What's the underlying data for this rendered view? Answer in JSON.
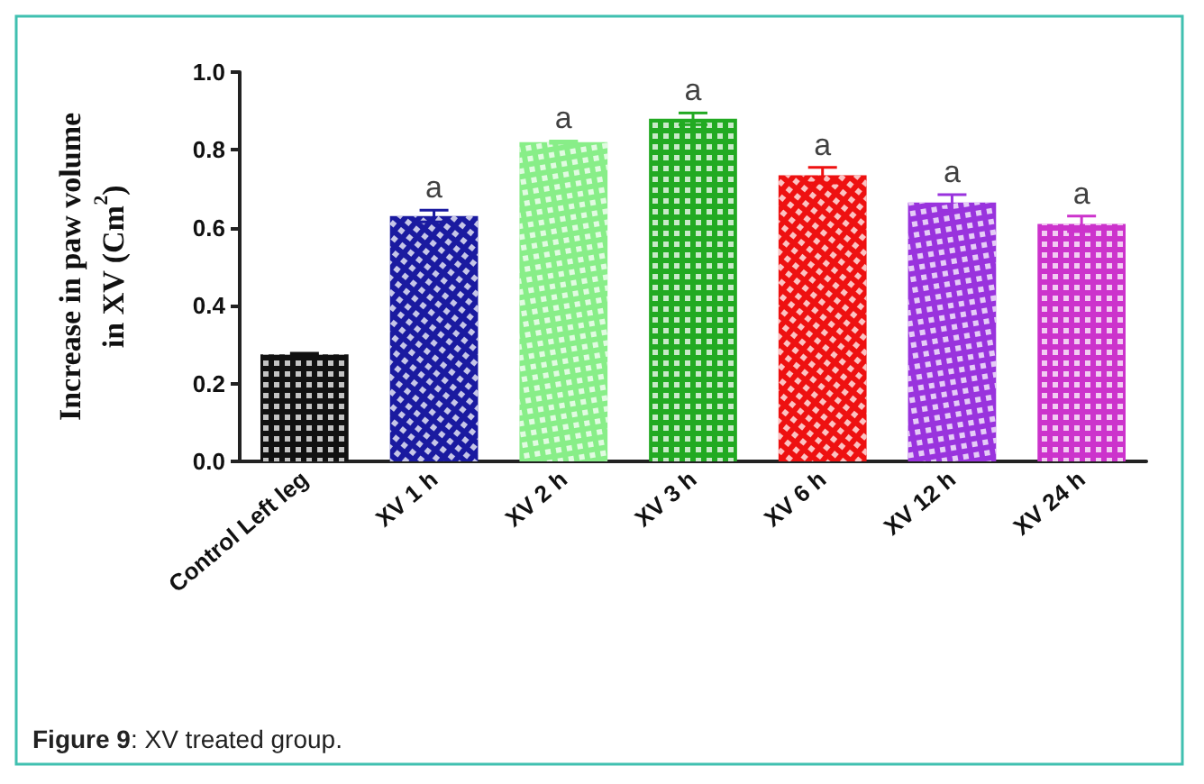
{
  "chart_data": {
    "type": "bar",
    "ylabel": "Increase in paw volume\nin XV (Cm$^{2}$)",
    "categories": [
      "Control Left leg",
      "XV 1 h",
      "XV 2 h",
      "XV 3 h",
      "XV 6 h",
      "XV 12 h",
      "XV 24 h"
    ],
    "values": [
      0.275,
      0.63,
      0.82,
      0.88,
      0.735,
      0.665,
      0.61
    ],
    "errors": [
      0.003,
      0.015,
      0.003,
      0.015,
      0.02,
      0.02,
      0.02
    ],
    "colors": [
      "#111111",
      "#1a1aa0",
      "#88ee88",
      "#22aa22",
      "#ee1111",
      "#9933dd",
      "#cc33cc"
    ],
    "ylim": [
      0,
      1.0
    ],
    "yticks": [
      {
        "value": 0,
        "label": "0.0"
      },
      0.2,
      0.4,
      0.6,
      0.8,
      {
        "value": 1,
        "label": "1.0"
      }
    ],
    "grid": false,
    "annotations": [
      {
        "text": "a",
        "x": "XV 1 h",
        "y": 0.645
      },
      {
        "text": "a",
        "x": "XV 2 h",
        "y": 0.823
      },
      {
        "text": "a",
        "x": "XV 3 h",
        "y": 0.895
      },
      {
        "text": "a",
        "x": "XV 6 h",
        "y": 0.755
      },
      {
        "text": "a",
        "x": "XV 12 h",
        "y": 0.685
      },
      {
        "text": "a",
        "x": "XV 24 h",
        "y": 0.63
      },
      "Figure 9: XV treated group."
    ]
  }
}
